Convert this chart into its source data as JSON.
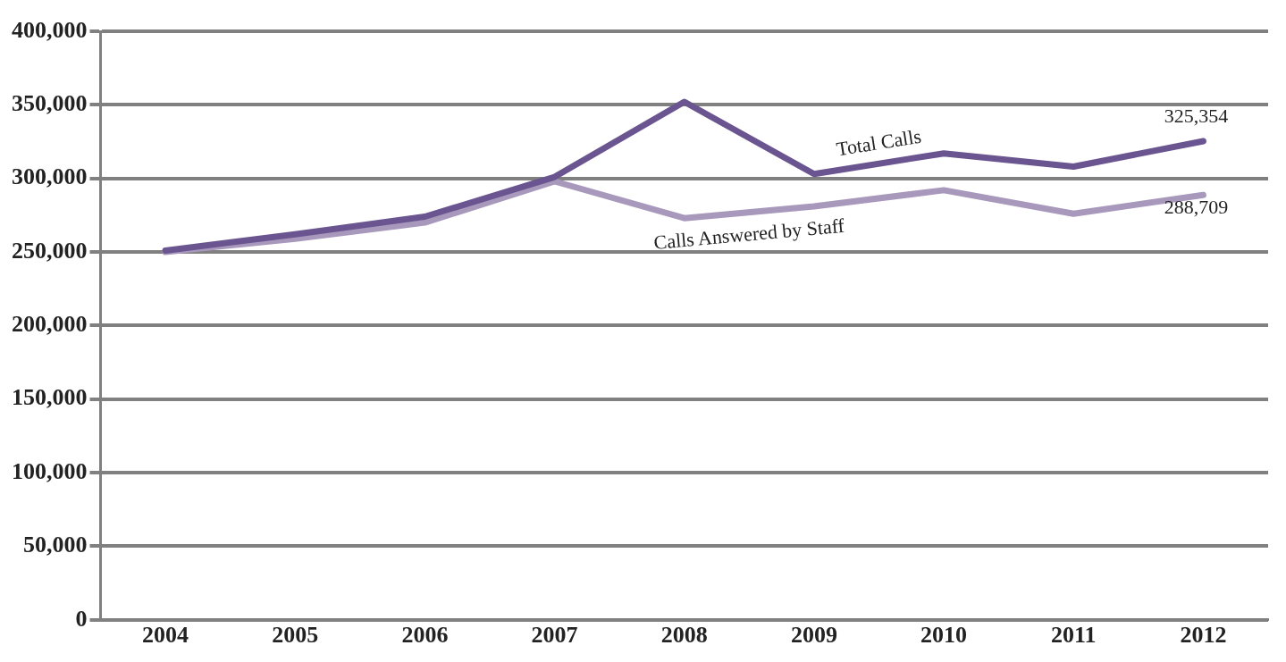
{
  "chart_data": {
    "type": "line",
    "categories": [
      "2004",
      "2005",
      "2006",
      "2007",
      "2008",
      "2009",
      "2010",
      "2011",
      "2012"
    ],
    "series": [
      {
        "name": "Total Calls",
        "color": "#6a5590",
        "values": [
          251000,
          262000,
          274000,
          301000,
          352000,
          303000,
          317000,
          308000,
          325354
        ],
        "value_labels": [
          null,
          null,
          null,
          null,
          null,
          null,
          null,
          null,
          "325,354"
        ]
      },
      {
        "name": "Calls Answered by Staff",
        "color": "#a898bc",
        "values": [
          250000,
          259000,
          270000,
          298000,
          273000,
          281000,
          292000,
          276000,
          288709
        ],
        "value_labels": [
          null,
          null,
          null,
          null,
          null,
          null,
          null,
          null,
          "288,709"
        ]
      }
    ],
    "ylim": [
      0,
      400000
    ],
    "yticks": [
      {
        "value": 0,
        "label": "0"
      },
      {
        "value": 50000,
        "label": "50,000"
      },
      {
        "value": 100000,
        "label": "100,000"
      },
      {
        "value": 150000,
        "label": "150,000"
      },
      {
        "value": 200000,
        "label": "200,000"
      },
      {
        "value": 250000,
        "label": "250,000"
      },
      {
        "value": 300000,
        "label": "300,000"
      },
      {
        "value": 350000,
        "label": "350,000"
      },
      {
        "value": 400000,
        "label": "400,000"
      }
    ],
    "grid": "y",
    "legend": false,
    "marker": "none",
    "line_style": "solid"
  }
}
